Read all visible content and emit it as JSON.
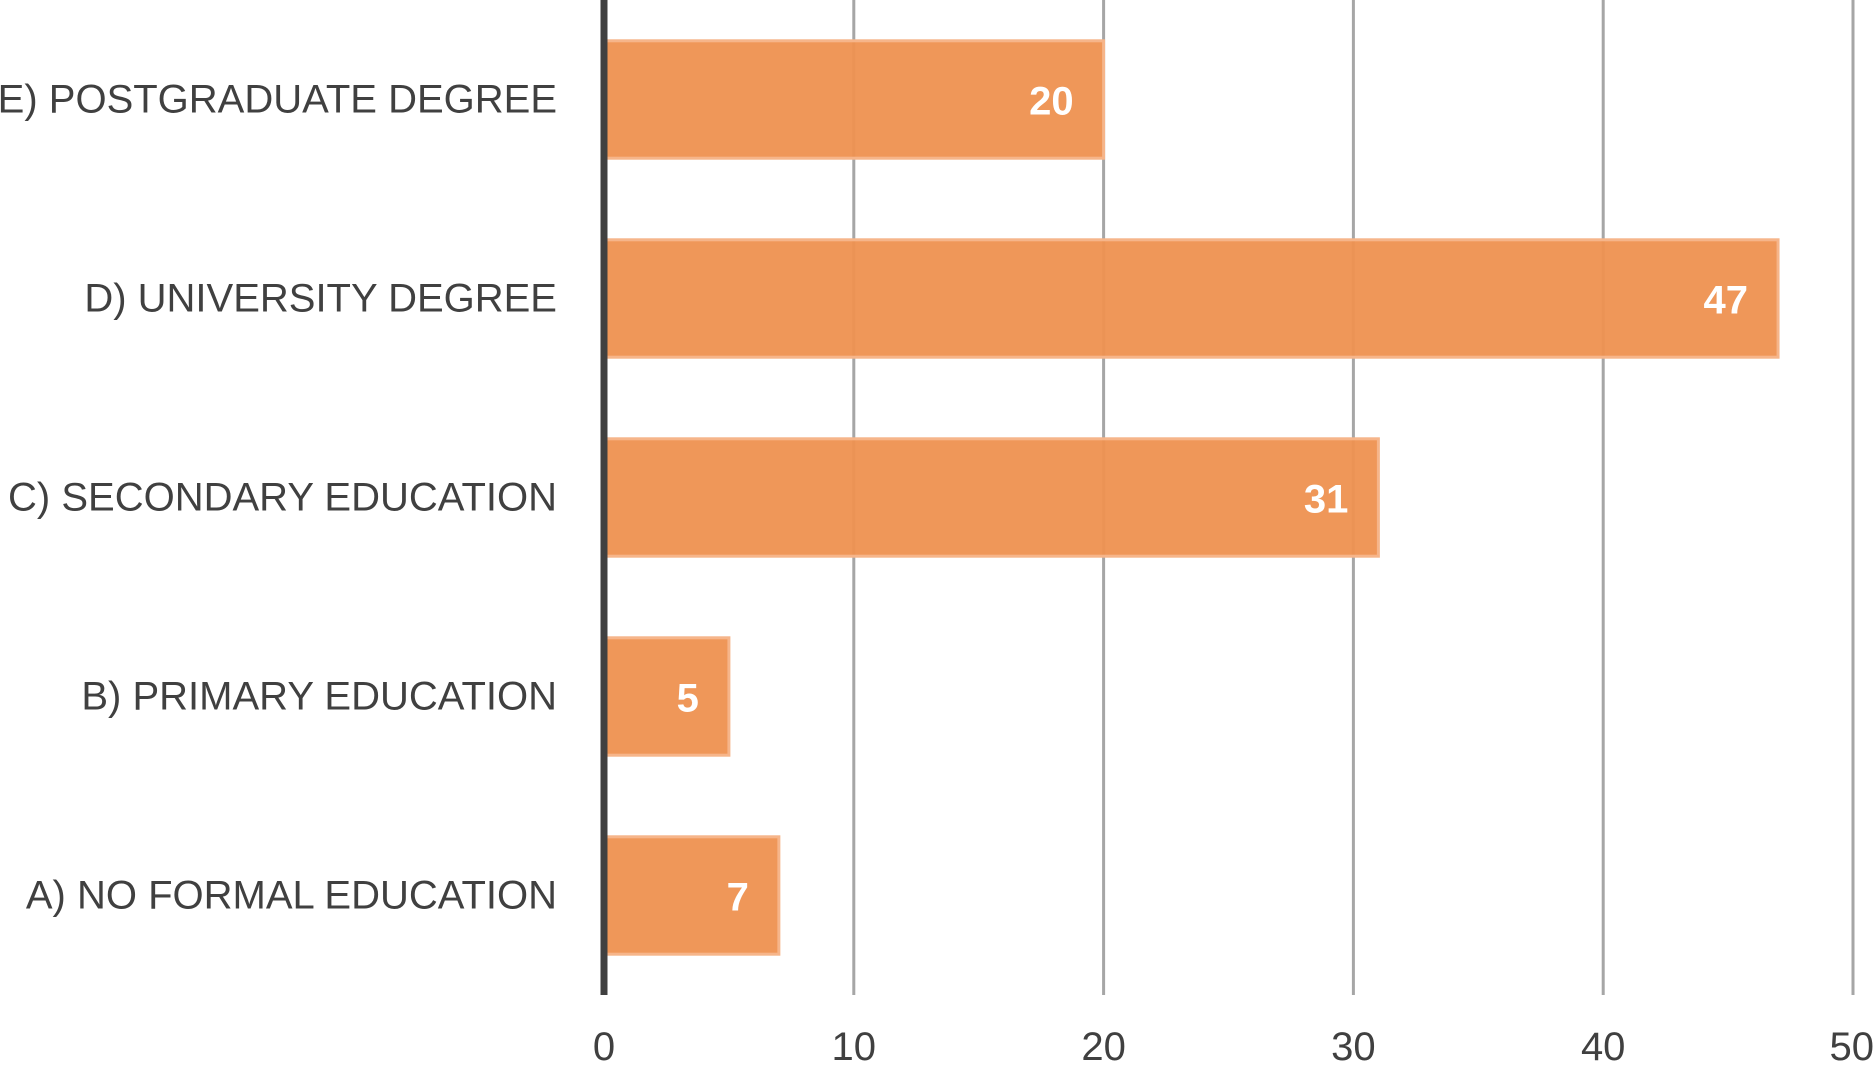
{
  "chart_data": {
    "type": "bar",
    "orientation": "horizontal",
    "title": "",
    "xlabel": "",
    "ylabel": "",
    "categories": [
      "A) NO FORMAL EDUCATION",
      "B) PRIMARY EDUCATION",
      "C) SECONDARY EDUCATION",
      "D) UNIVERSITY DEGREE",
      "E) POSTGRADUATE DEGREE"
    ],
    "values": [
      7,
      5,
      31,
      47,
      20
    ],
    "xlim": [
      0,
      50
    ],
    "xticks": [
      0,
      10,
      20,
      30,
      40,
      50
    ],
    "grid": true,
    "legend": "none",
    "data_labels": true,
    "colors": {
      "bar": "#ee9150",
      "bar_border": "#f6b58a",
      "grid": "#a6a6a6",
      "axis": "#404040",
      "text": "#404040",
      "data_label": "#ffffff"
    }
  }
}
